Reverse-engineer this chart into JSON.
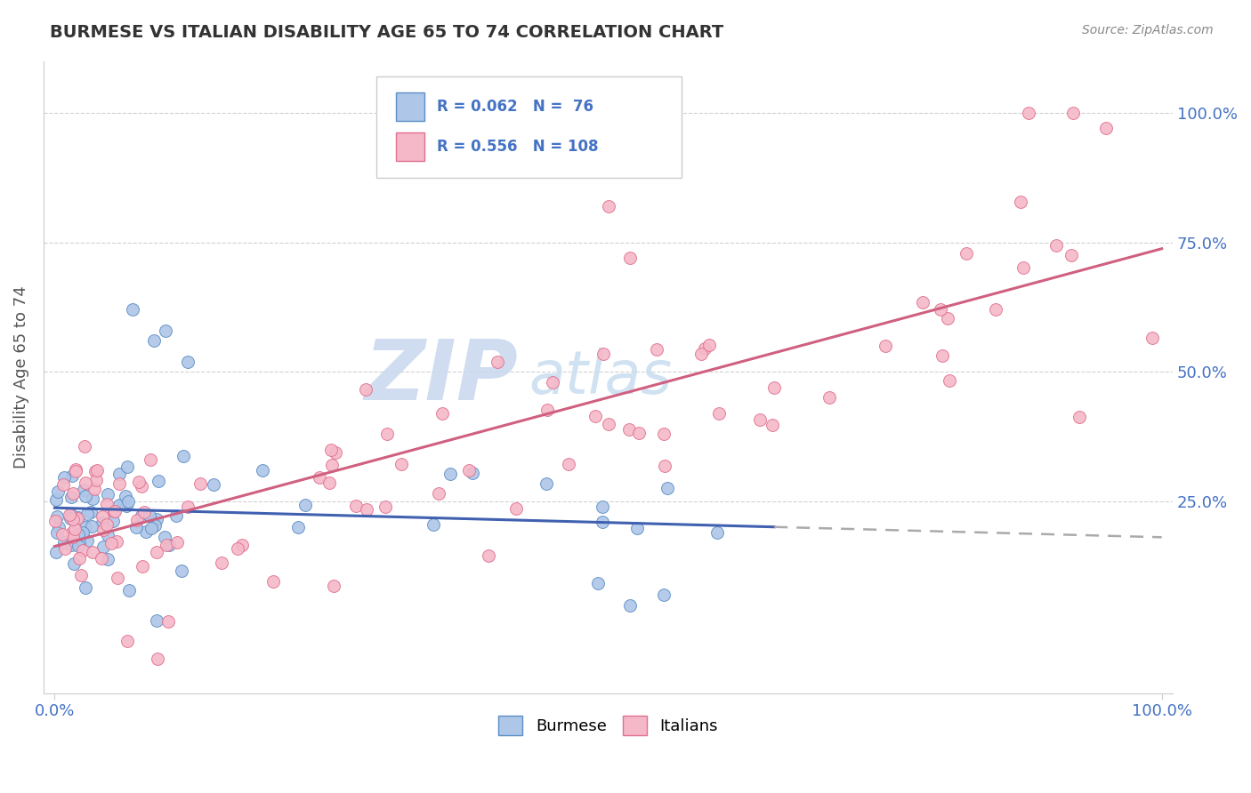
{
  "title": "BURMESE VS ITALIAN DISABILITY AGE 65 TO 74 CORRELATION CHART",
  "source_text": "Source: ZipAtlas.com",
  "ylabel": "Disability Age 65 to 74",
  "burmese_color": "#aec6e8",
  "italian_color": "#f5b8c8",
  "burmese_edge_color": "#5b8ec4",
  "italian_edge_color": "#e07090",
  "burmese_line_color": "#4060b0",
  "italian_line_color": "#d06080",
  "dashed_line_color": "#aaaaaa",
  "burmese_R": 0.062,
  "burmese_N": 76,
  "italian_R": 0.556,
  "italian_N": 108,
  "legend_label_burmese": "Burmese",
  "legend_label_italians": "Italians",
  "title_color": "#333333",
  "axis_label_color": "#555555",
  "right_ytick_labels": [
    "25.0%",
    "50.0%",
    "75.0%",
    "100.0%"
  ],
  "right_ytick_values": [
    0.25,
    0.5,
    0.75,
    1.0
  ],
  "tick_color": "#4472c4",
  "background_color": "#ffffff",
  "grid_color": "#cccccc",
  "watermark_zip": "ZIP",
  "watermark_atlas": "atlas",
  "watermark_color_zip": "#c8d8ee",
  "watermark_color_atlas": "#c8ddf0"
}
